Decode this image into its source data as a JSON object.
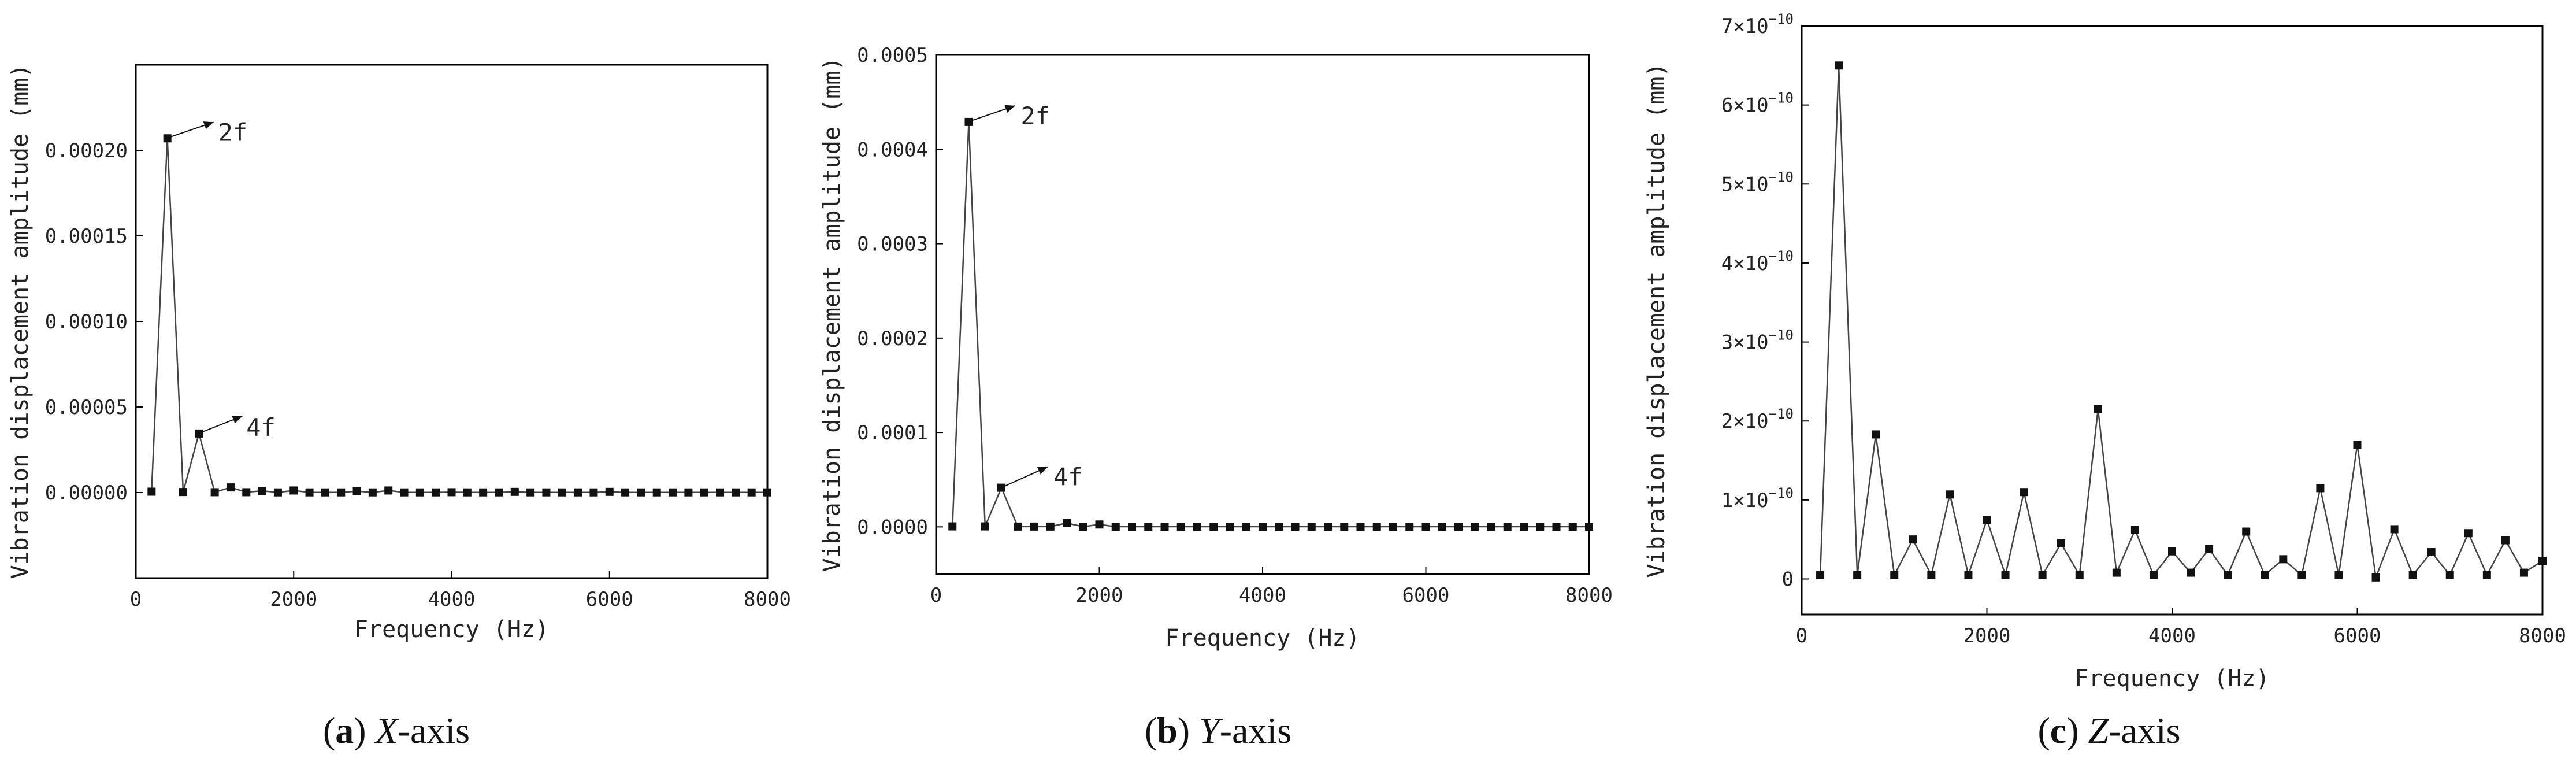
{
  "chart_data": [
    {
      "type": "line",
      "caption": {
        "letter": "a",
        "axis": "X",
        "suffix": "-axis"
      },
      "xlabel": "Frequency (Hz)",
      "ylabel": "Vibration displacement amplitude (mm)",
      "xlim": [
        0,
        8000
      ],
      "ylim": [
        -5e-05,
        0.00025
      ],
      "xticks": [
        0,
        2000,
        4000,
        6000,
        8000
      ],
      "yticks": [
        0,
        5e-05,
        0.0001,
        0.00015,
        0.0002
      ],
      "ytick_labels": [
        "0.00000",
        "0.00005",
        "0.00010",
        "0.00015",
        "0.00020"
      ],
      "series": [
        {
          "x": [
            200,
            400,
            600,
            800,
            1000,
            1200,
            1400,
            1600,
            1800,
            2000,
            2200,
            2400,
            2600,
            2800,
            3000,
            3200,
            3400,
            3600,
            3800,
            4000,
            4200,
            4400,
            4600,
            4800,
            5000,
            5200,
            5400,
            5600,
            5800,
            6000,
            6200,
            6400,
            6600,
            6800,
            7000,
            7200,
            7400,
            7600,
            7800,
            8000
          ],
          "y": [
            5e-07,
            0.000207,
            3e-07,
            3.45e-05,
            2e-07,
            3e-06,
            2e-07,
            1e-06,
            1e-07,
            1.2e-06,
            1e-07,
            1e-07,
            1e-07,
            8e-07,
            1e-07,
            1.2e-06,
            1e-07,
            1e-07,
            1e-07,
            2e-07,
            1e-07,
            1e-07,
            1e-07,
            4e-07,
            1e-07,
            1e-07,
            1e-07,
            1e-07,
            1e-07,
            4e-07,
            1e-07,
            1e-07,
            1e-07,
            1e-07,
            1e-07,
            1e-07,
            1e-07,
            1e-07,
            1e-07,
            1e-07
          ]
        }
      ],
      "annotations": [
        {
          "text": "2f",
          "x": 400,
          "y": 0.000207
        },
        {
          "text": "4f",
          "x": 800,
          "y": 3.45e-05
        }
      ]
    },
    {
      "type": "line",
      "caption": {
        "letter": "b",
        "axis": "Y",
        "suffix": "-axis"
      },
      "xlabel": "Frequency (Hz)",
      "ylabel": "Vibration displacement amplitude (mm)",
      "xlim": [
        0,
        8000
      ],
      "ylim": [
        -5e-05,
        0.0005
      ],
      "xticks": [
        0,
        2000,
        4000,
        6000,
        8000
      ],
      "yticks": [
        0,
        0.0001,
        0.0002,
        0.0003,
        0.0004,
        0.0005
      ],
      "ytick_labels": [
        "0.0000",
        "0.0001",
        "0.0002",
        "0.0003",
        "0.0004",
        "0.0005"
      ],
      "series": [
        {
          "x": [
            200,
            400,
            600,
            800,
            1000,
            1200,
            1400,
            1600,
            1800,
            2000,
            2200,
            2400,
            2600,
            2800,
            3000,
            3200,
            3400,
            3600,
            3800,
            4000,
            4200,
            4400,
            4600,
            4800,
            5000,
            5200,
            5400,
            5600,
            5800,
            6000,
            6200,
            6400,
            6600,
            6800,
            7000,
            7200,
            7400,
            7600,
            7800,
            8000
          ],
          "y": [
            5e-07,
            0.000429,
            5e-07,
            4.15e-05,
            3e-07,
            3e-07,
            3e-07,
            4e-06,
            2e-07,
            2.5e-06,
            2e-07,
            2e-07,
            2e-07,
            2e-07,
            2e-07,
            2e-07,
            2e-07,
            2e-07,
            2e-07,
            2e-07,
            2e-07,
            2e-07,
            2e-07,
            2e-07,
            2e-07,
            2e-07,
            2e-07,
            2e-07,
            2e-07,
            2e-07,
            2e-07,
            2e-07,
            2e-07,
            2e-07,
            2e-07,
            2e-07,
            2e-07,
            2e-07,
            2e-07,
            2e-07
          ]
        }
      ],
      "annotations": [
        {
          "text": "2f",
          "x": 400,
          "y": 0.000429
        },
        {
          "text": "4f",
          "x": 800,
          "y": 4.15e-05
        }
      ]
    },
    {
      "type": "line",
      "caption": {
        "letter": "c",
        "axis": "Z",
        "suffix": "-axis"
      },
      "xlabel": "Frequency (Hz)",
      "ylabel": "Vibration displacement amplitude (mm)",
      "xlim": [
        0,
        8000
      ],
      "ylim": [
        -4.5e-11,
        7e-10
      ],
      "xticks": [
        0,
        2000,
        4000,
        6000,
        8000
      ],
      "yticks": [
        0,
        1e-10,
        2e-10,
        3e-10,
        4e-10,
        5e-10,
        6e-10,
        7e-10
      ],
      "ytick_labels": [
        {
          "mant": "0",
          "exp": ""
        },
        {
          "mant": "1×10",
          "exp": "−10"
        },
        {
          "mant": "2×10",
          "exp": "−10"
        },
        {
          "mant": "3×10",
          "exp": "−10"
        },
        {
          "mant": "4×10",
          "exp": "−10"
        },
        {
          "mant": "5×10",
          "exp": "−10"
        },
        {
          "mant": "6×10",
          "exp": "−10"
        },
        {
          "mant": "7×10",
          "exp": "−10"
        }
      ],
      "series": [
        {
          "x": [
            200,
            400,
            600,
            800,
            1000,
            1200,
            1400,
            1600,
            1800,
            2000,
            2200,
            2400,
            2600,
            2800,
            3000,
            3200,
            3400,
            3600,
            3800,
            4000,
            4200,
            4400,
            4600,
            4800,
            5000,
            5200,
            5400,
            5600,
            5800,
            6000,
            6200,
            6400,
            6600,
            6800,
            7000,
            7200,
            7400,
            7600,
            7800,
            8000
          ],
          "y": [
            5e-12,
            6.5e-10,
            5e-12,
            1.83e-10,
            5e-12,
            5e-11,
            5e-12,
            1.07e-10,
            5e-12,
            7.5e-11,
            5e-12,
            1.1e-10,
            5e-12,
            4.5e-11,
            5e-12,
            2.15e-10,
            8e-12,
            6.2e-11,
            5e-12,
            3.5e-11,
            8e-12,
            3.8e-11,
            5e-12,
            6e-11,
            5e-12,
            2.5e-11,
            5e-12,
            1.15e-10,
            5e-12,
            1.7e-10,
            2e-12,
            6.3e-11,
            5e-12,
            3.4e-11,
            5e-12,
            5.8e-11,
            5e-12,
            4.9e-11,
            8e-12,
            2.3e-11
          ]
        }
      ],
      "annotations": []
    }
  ]
}
